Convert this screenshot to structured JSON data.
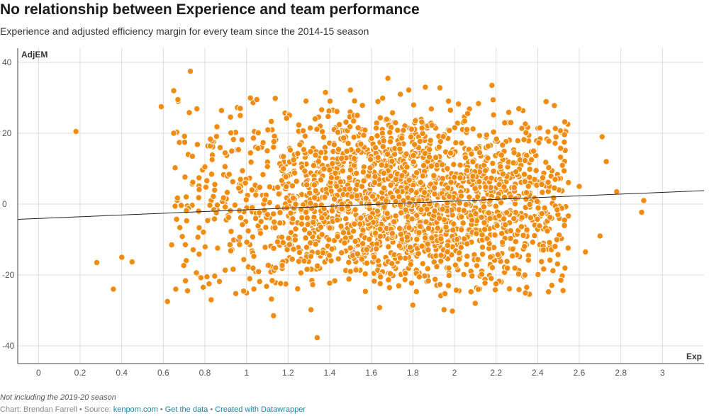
{
  "chart_data": {
    "type": "scatter",
    "title": "No relationship between Experience and team performance",
    "subtitle": "Experience and adjusted efficiency margin for every team since the 2014-15 season",
    "xlabel": "Exp",
    "ylabel": "AdjEM",
    "xlim": [
      -0.1,
      3.2
    ],
    "ylim": [
      -45,
      44
    ],
    "x_ticks": [
      0,
      0.2,
      0.4,
      0.6,
      0.8,
      1,
      1.2,
      1.4,
      1.6,
      1.8,
      2,
      2.2,
      2.4,
      2.6,
      2.8,
      3
    ],
    "x_tick_labels": [
      "0",
      "0.2",
      "0.4",
      "0.6",
      "0.8",
      "1",
      "1.2",
      "1.4",
      "1.6",
      "1.8",
      "2",
      "2.2",
      "2.4",
      "2.6",
      "2.8",
      "3"
    ],
    "y_ticks": [
      40,
      20,
      0,
      -20,
      -40
    ],
    "y_tick_labels": [
      "40",
      "20",
      "0",
      "-20",
      "-40"
    ],
    "grid": true,
    "point_color": "#f28c0e",
    "trendline": {
      "color": "#222222",
      "x": [
        -0.1,
        3.2
      ],
      "y": [
        -4.3,
        3.8
      ]
    },
    "points": [
      [
        0.18,
        20.5
      ],
      [
        0.28,
        -16.5
      ],
      [
        0.36,
        -24
      ],
      [
        0.4,
        -15
      ],
      [
        0.45,
        -16.3
      ],
      [
        0.59,
        27.5
      ],
      [
        0.62,
        -27.5
      ],
      [
        0.64,
        -11.5
      ],
      [
        0.65,
        32
      ],
      [
        0.65,
        20
      ],
      [
        0.66,
        -24
      ],
      [
        0.67,
        29.5
      ],
      [
        0.72,
        14
      ],
      [
        0.73,
        37.5
      ],
      [
        0.74,
        13.5
      ],
      [
        0.77,
        -2
      ],
      [
        0.8,
        10.5
      ],
      [
        0.81,
        -20.5
      ],
      [
        0.82,
        -22.5
      ],
      [
        0.83,
        -27
      ],
      [
        0.97,
        27
      ],
      [
        0.97,
        25
      ],
      [
        1.05,
        29.5
      ],
      [
        1.12,
        -26.8
      ],
      [
        1.13,
        -31.5
      ],
      [
        1.31,
        -29.8
      ],
      [
        1.34,
        -37.7
      ],
      [
        1.38,
        31.5
      ],
      [
        1.4,
        -22.3
      ],
      [
        1.5,
        32.2
      ],
      [
        1.64,
        -29.2
      ],
      [
        1.68,
        35.5
      ],
      [
        1.74,
        31
      ],
      [
        1.78,
        32.2
      ],
      [
        1.8,
        -28.5
      ],
      [
        1.86,
        33
      ],
      [
        1.93,
        32.8
      ],
      [
        1.95,
        -29.8
      ],
      [
        1.99,
        -30.2
      ],
      [
        2.1,
        -28
      ],
      [
        2.18,
        33.5
      ],
      [
        2.41,
        21.5
      ],
      [
        2.45,
        20.4
      ],
      [
        2.53,
        23.2
      ],
      [
        2.6,
        5
      ],
      [
        2.63,
        -13.5
      ],
      [
        2.7,
        -9
      ],
      [
        2.71,
        19
      ],
      [
        2.73,
        12
      ],
      [
        2.78,
        3.5
      ],
      [
        2.9,
        -2.3
      ],
      [
        2.91,
        1
      ]
    ],
    "cloud": {
      "x_center": 1.75,
      "x_spread": 0.52,
      "y_center": 0.5,
      "y_spread": 13.5,
      "x_range": [
        0.65,
        2.55
      ],
      "y_range": [
        -26,
        30
      ],
      "count": 2100
    }
  },
  "footer": {
    "note": "Not including the 2019-20 season",
    "byline_prefix": "Chart: Brendan Farrell • Source: ",
    "source_link": "kenpom.com",
    "separator_1": " • ",
    "get_data": "Get the data",
    "separator_2": " • ",
    "created_with": "Created with Datawrapper"
  }
}
